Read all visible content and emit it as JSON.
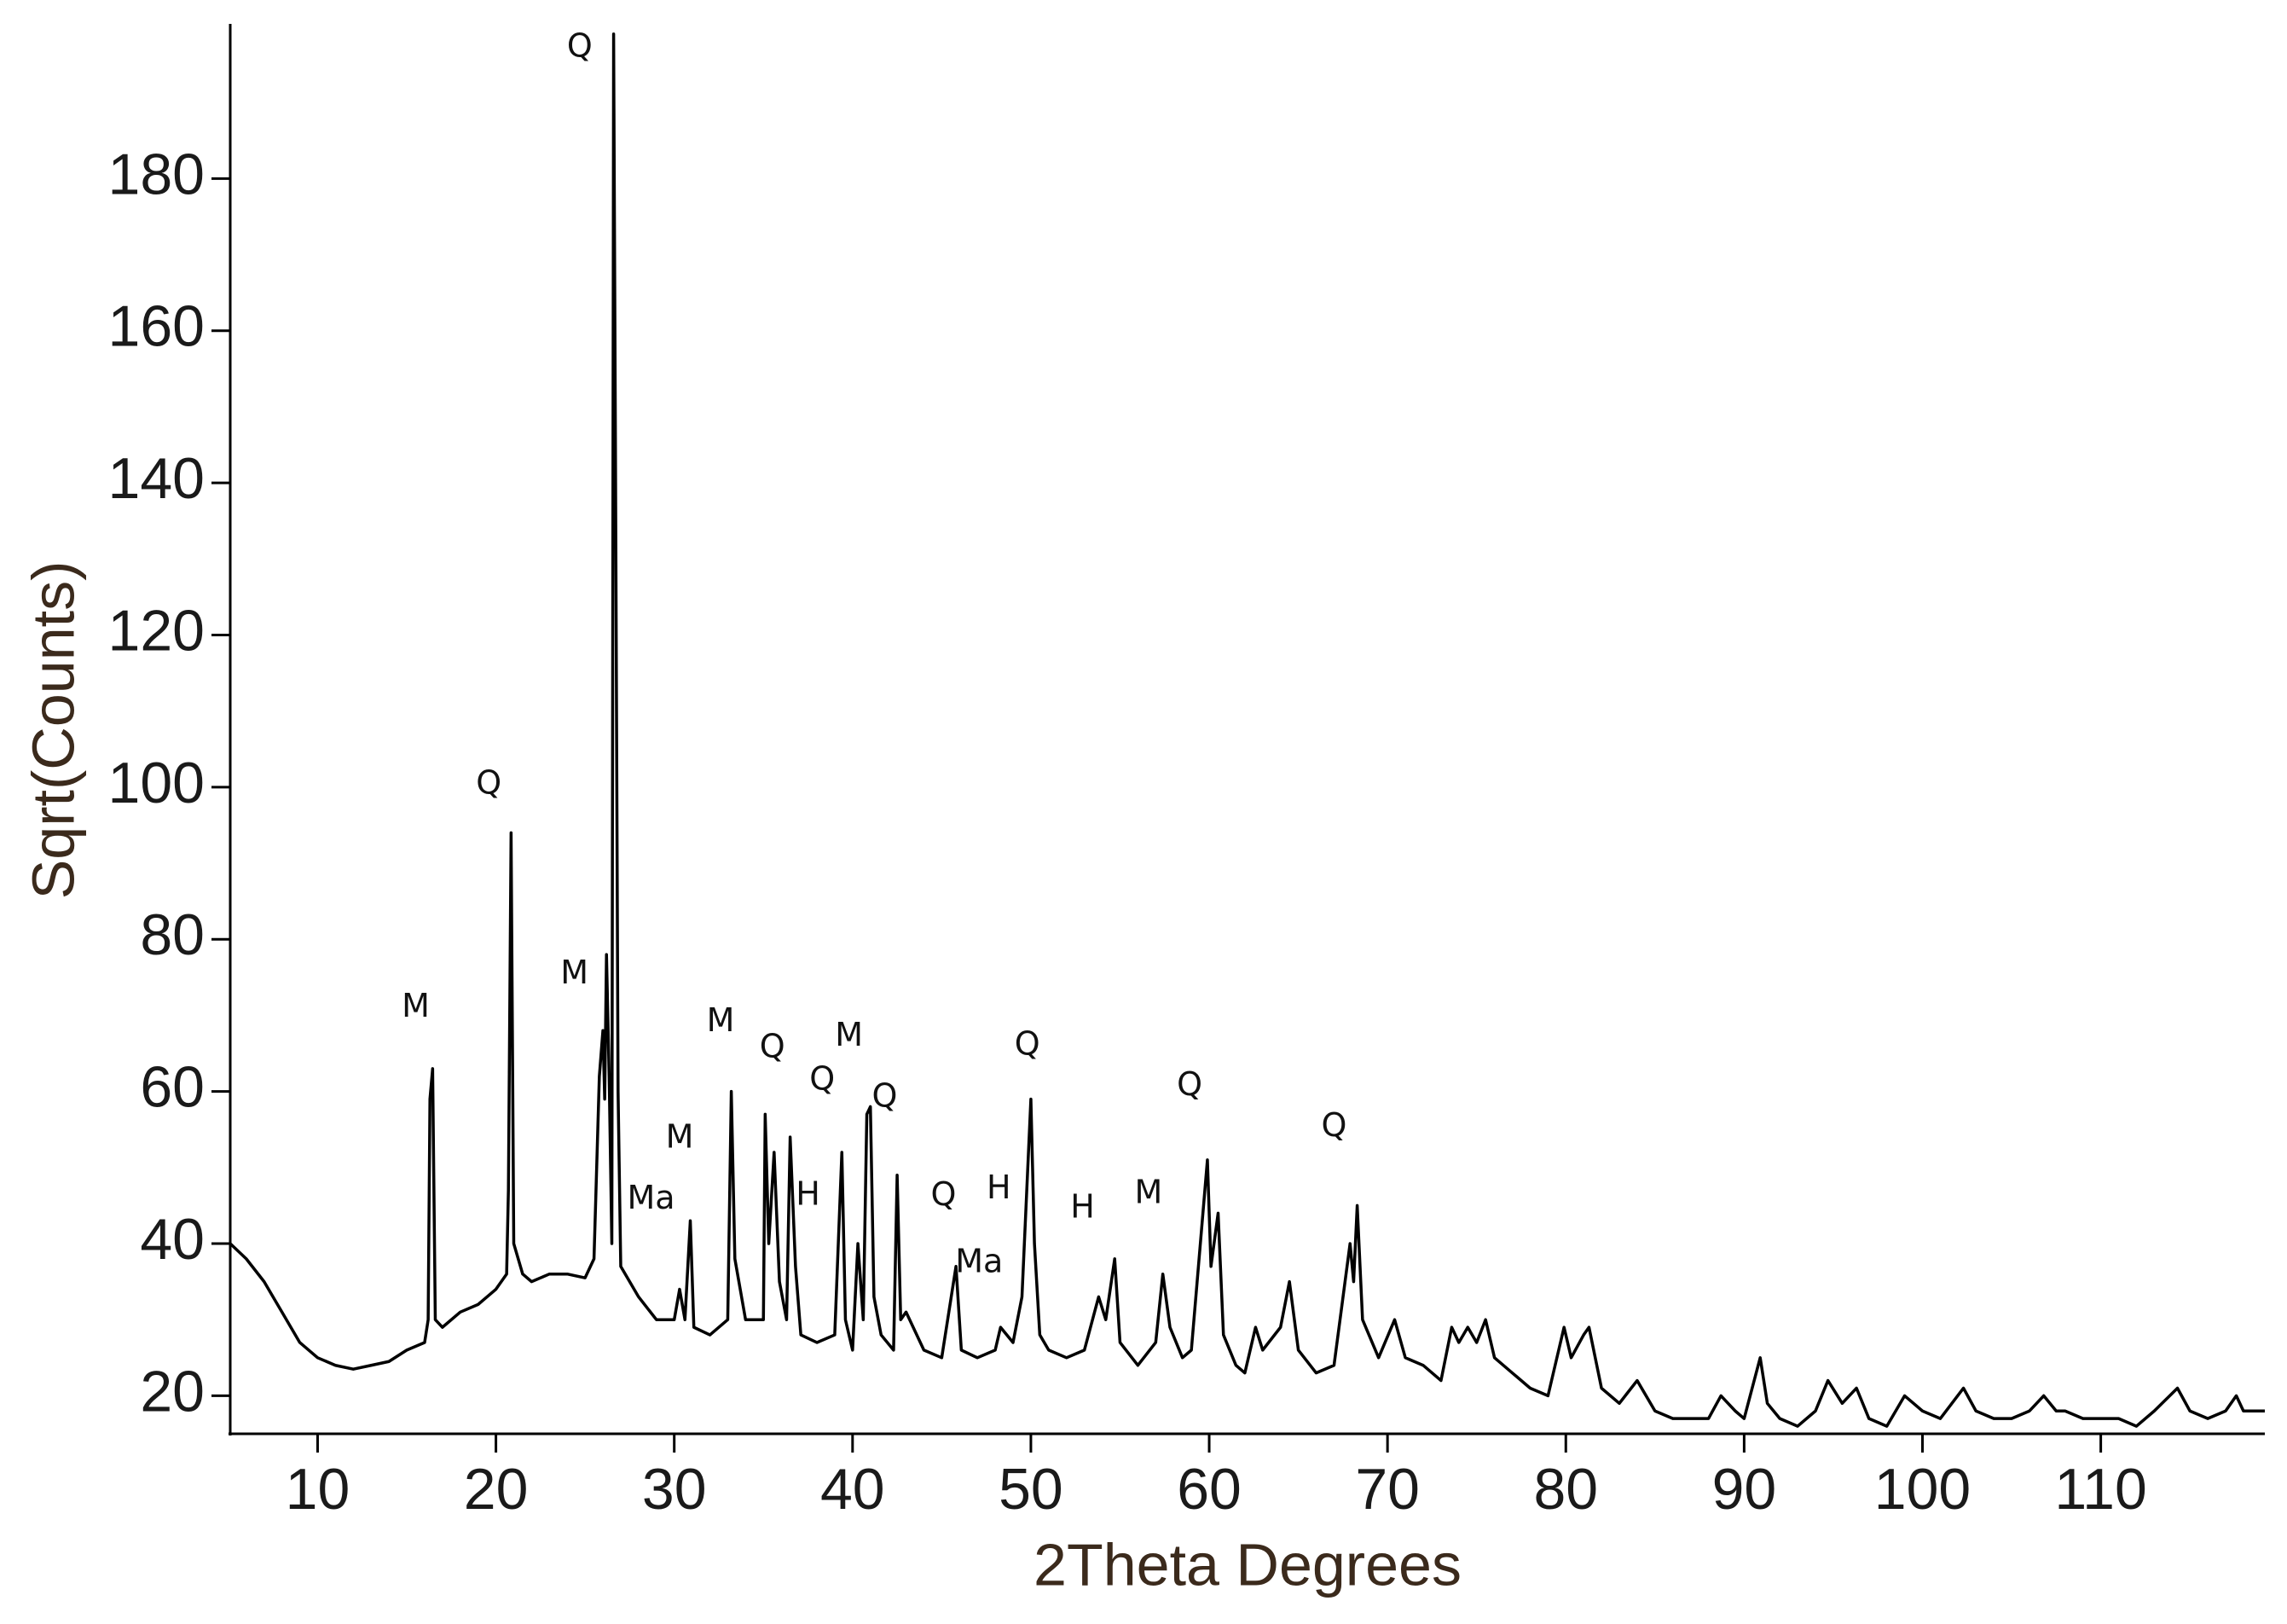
{
  "chart_data": {
    "type": "line",
    "x_label": "2Theta Degrees",
    "y_label": "Sqrt(Counts)",
    "color": "#000000",
    "xlim": [
      5.1,
      119.2
    ],
    "ylim": [
      15,
      200
    ],
    "xticks": [
      10,
      20,
      30,
      40,
      50,
      60,
      70,
      80,
      90,
      100,
      110
    ],
    "yticks": [
      20,
      40,
      60,
      80,
      100,
      120,
      140,
      160,
      180
    ],
    "x": [
      5.1,
      6,
      7,
      8,
      9,
      10,
      11,
      12,
      13,
      14,
      15,
      16,
      16.2,
      16.3,
      16.45,
      16.6,
      17,
      18,
      19,
      20,
      20.6,
      20.7,
      20.85,
      21,
      21.5,
      22,
      23,
      24,
      25,
      25.5,
      25.8,
      26.0,
      26.1,
      26.2,
      26.35,
      26.5,
      26.6,
      26.7,
      26.85,
      27,
      28,
      29,
      30,
      30.3,
      30.6,
      30.9,
      31.1,
      32,
      33,
      33.2,
      33.4,
      34,
      35,
      35.1,
      35.3,
      35.6,
      35.9,
      36.3,
      36.5,
      36.8,
      37.1,
      38,
      39,
      39.4,
      39.6,
      40,
      40.3,
      40.6,
      40.8,
      41,
      41.2,
      41.6,
      42.3,
      42.5,
      42.7,
      43,
      44,
      45,
      45.8,
      46.1,
      47,
      48,
      48.3,
      49,
      49.5,
      50,
      50.2,
      50.5,
      51,
      52,
      53,
      53.8,
      54.2,
      54.7,
      55,
      56,
      57,
      57.4,
      57.8,
      58.5,
      59,
      59.9,
      60.1,
      60.5,
      60.8,
      61.5,
      62,
      62.6,
      63,
      64,
      64.5,
      65,
      66,
      67,
      67.9,
      68.1,
      68.3,
      68.6,
      69.5,
      70.4,
      71,
      72,
      73,
      73.6,
      74,
      74.5,
      75,
      75.5,
      76,
      77,
      78,
      79,
      79.9,
      80.3,
      81,
      81.3,
      82,
      83,
      84,
      85,
      86,
      87,
      88,
      88.7,
      89.5,
      90,
      90.9,
      91.3,
      92,
      93,
      94,
      94.7,
      95.5,
      96.3,
      97,
      98,
      99,
      100,
      101,
      102.3,
      103,
      104,
      105,
      106,
      106.8,
      107.5,
      108,
      109,
      110,
      111,
      112,
      113,
      114.3,
      115,
      116,
      117,
      117.6,
      118,
      119.2
    ],
    "values": [
      40,
      38,
      35,
      31,
      27,
      25,
      24,
      23.5,
      24,
      24.5,
      26,
      27,
      30,
      59,
      63,
      30,
      29,
      31,
      32,
      34,
      36,
      47,
      94,
      40,
      36,
      35,
      36,
      36,
      35.5,
      38,
      62,
      68,
      59,
      78,
      62,
      40,
      199,
      146,
      60,
      37,
      33,
      30,
      30,
      34,
      30,
      43,
      29,
      28,
      30,
      60,
      38,
      30,
      30,
      57,
      40,
      52,
      35,
      30,
      54,
      37,
      28,
      27,
      28,
      52,
      30,
      26,
      40,
      30,
      57,
      58,
      33,
      28,
      26,
      49,
      30,
      31,
      26,
      25,
      37,
      26,
      25,
      26,
      29,
      27,
      33,
      59,
      40,
      28,
      26,
      25,
      26,
      33,
      30,
      38,
      27,
      24,
      27,
      36,
      29,
      25,
      26,
      51,
      37,
      44,
      28,
      24,
      23,
      29,
      26,
      29,
      35,
      26,
      23,
      24,
      40,
      35,
      45,
      30,
      25,
      30,
      25,
      24,
      22,
      29,
      27,
      29,
      27,
      30,
      25,
      23,
      21,
      20,
      29,
      25,
      28,
      29,
      21,
      19,
      22,
      18,
      17,
      17,
      17,
      20,
      18,
      17,
      25,
      19,
      17,
      16,
      18,
      22,
      19,
      21,
      17,
      16,
      20,
      18,
      17,
      21,
      18,
      17,
      17,
      18,
      20,
      18,
      18,
      17,
      17,
      17,
      16,
      18,
      21,
      18,
      17,
      18,
      20,
      18,
      18
    ],
    "annotations": [
      {
        "text": "Q",
        "x": 24.7,
        "y": 197.2
      },
      {
        "text": "M",
        "x": 15.5,
        "y": 71
      },
      {
        "text": "Q",
        "x": 19.6,
        "y": 100.3
      },
      {
        "text": "M",
        "x": 24.4,
        "y": 75.4
      },
      {
        "text": "Ma",
        "x": 28.7,
        "y": 45.8
      },
      {
        "text": "M",
        "x": 30.3,
        "y": 53.8
      },
      {
        "text": "M",
        "x": 32.6,
        "y": 69.1
      },
      {
        "text": "Q",
        "x": 35.5,
        "y": 65.7
      },
      {
        "text": "H",
        "x": 37.5,
        "y": 46.3
      },
      {
        "text": "Q",
        "x": 38.3,
        "y": 61.4
      },
      {
        "text": "M",
        "x": 39.8,
        "y": 67.2
      },
      {
        "text": "Q",
        "x": 41.8,
        "y": 59.2
      },
      {
        "text": "Q",
        "x": 45.1,
        "y": 46.2
      },
      {
        "text": "Ma",
        "x": 47.1,
        "y": 37.4
      },
      {
        "text": "H",
        "x": 48.2,
        "y": 47.1
      },
      {
        "text": "Q",
        "x": 49.8,
        "y": 66.0
      },
      {
        "text": "H",
        "x": 52.9,
        "y": 44.6
      },
      {
        "text": "M",
        "x": 56.6,
        "y": 46.5
      },
      {
        "text": "Q",
        "x": 58.9,
        "y": 60.7
      },
      {
        "text": "Q",
        "x": 67.0,
        "y": 55.3
      }
    ]
  }
}
